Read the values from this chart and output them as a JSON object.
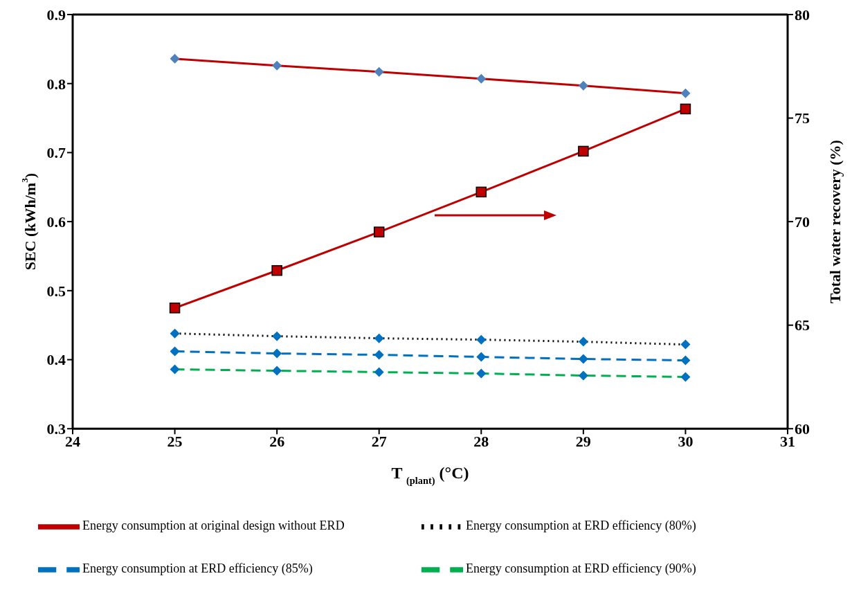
{
  "chart_data": {
    "type": "line",
    "xlabel": "T $_{(plant)}$ (°C)",
    "ylabel": "SEC (kWh/m$^{3}$)",
    "y2label": "Total water recovery  (%)",
    "x": [
      25,
      26,
      27,
      28,
      29,
      30
    ],
    "xlim": [
      24,
      31
    ],
    "xticks": [
      24,
      25,
      26,
      27,
      28,
      29,
      30,
      31
    ],
    "ylim": [
      0.3,
      0.9
    ],
    "yticks": [
      0.3,
      0.4,
      0.5,
      0.6,
      0.7,
      0.8,
      0.9
    ],
    "y2lim": [
      60,
      80
    ],
    "y2ticks": [
      60,
      65,
      70,
      75,
      80
    ],
    "grid": false,
    "legend": "bottom",
    "series": [
      {
        "name": "Energy consumption at original design without ERD",
        "color": "#c00000",
        "marker": "diamond",
        "line_style": "solid",
        "values": [
          0.836,
          0.826,
          0.817,
          0.807,
          0.797,
          0.786
        ]
      },
      {
        "color": "#c00000",
        "marker": "square",
        "line_style": "solid",
        "axis": "y2",
        "values": [
          65.83,
          67.64,
          69.5,
          71.43,
          73.4,
          75.44
        ]
      },
      {
        "name": "Energy consumption at ERD efficiency (80%)",
        "color": "#000000",
        "marker": "diamond",
        "line_style": "dotted",
        "values": [
          0.438,
          0.434,
          0.431,
          0.429,
          0.426,
          0.422
        ]
      },
      {
        "name": "Energy consumption at ERD efficiency (85%)",
        "color": "#0070c0",
        "marker": "diamond",
        "line_style": "dashed",
        "values": [
          0.412,
          0.409,
          0.407,
          0.404,
          0.401,
          0.399
        ]
      },
      {
        "name": "Energy consumption at ERD efficiency (90%)",
        "color": "#00b050",
        "marker": "diamond",
        "line_style": "dashed",
        "values": [
          0.386,
          0.384,
          0.382,
          0.38,
          0.377,
          0.375
        ]
      }
    ]
  }
}
